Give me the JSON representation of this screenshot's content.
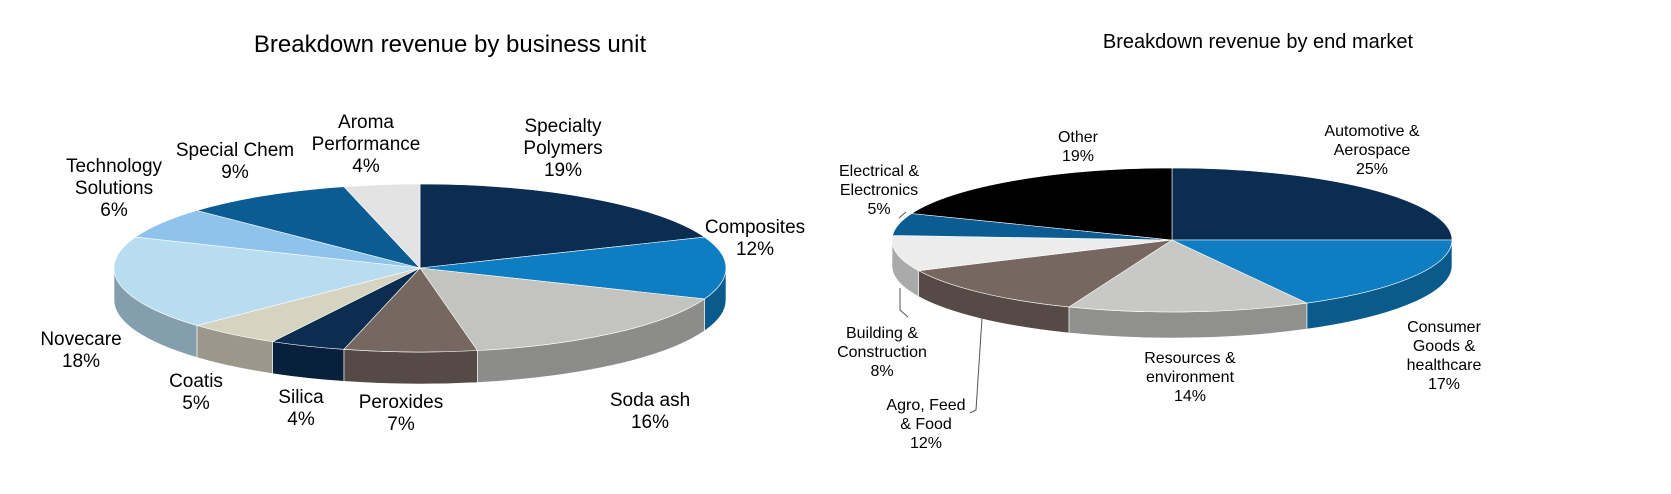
{
  "chart_data": [
    {
      "type": "pie",
      "title": "Breakdown revenue by business unit",
      "slices": [
        {
          "label": "Specialty\nPolymers",
          "value": 19,
          "color": "#0b2d52"
        },
        {
          "label": "Composites",
          "value": 12,
          "color": "#0f7dc2"
        },
        {
          "label": "Soda ash",
          "value": 16,
          "color": "#c3c3c0"
        },
        {
          "label": "Peroxides",
          "value": 7,
          "color": "#766760"
        },
        {
          "label": "Silica",
          "value": 4,
          "color": "#0b2d52"
        },
        {
          "label": "Coatis",
          "value": 5,
          "color": "#d7d3c1"
        },
        {
          "label": "Novecare",
          "value": 18,
          "color": "#b8dcf0"
        },
        {
          "label": "Technology\nSolutions",
          "value": 6,
          "color": "#8ec3ec"
        },
        {
          "label": "Special Chem",
          "value": 9,
          "color": "#0b5c92"
        },
        {
          "label": "Aroma\nPerformance",
          "value": 4,
          "color": "#e3e3e3"
        }
      ]
    },
    {
      "type": "pie",
      "title": "Breakdown revenue by end market",
      "slices": [
        {
          "label": "Automotive &\nAerospace",
          "value": 25,
          "color": "#0b2d52"
        },
        {
          "label": "Consumer\nGoods &\nhealthcare",
          "value": 17,
          "color": "#0f7dc2"
        },
        {
          "label": "Resources &\nenvironment",
          "value": 14,
          "color": "#c8c8c6"
        },
        {
          "label": "Agro, Feed\n& Food",
          "value": 12,
          "color": "#766760"
        },
        {
          "label": "Building &\nConstruction",
          "value": 8,
          "color": "#ececec"
        },
        {
          "label": "Electrical &\nElectronics",
          "value": 5,
          "color": "#0b5c92"
        },
        {
          "label": "Other",
          "value": 19,
          "color": "#000000"
        }
      ]
    }
  ]
}
